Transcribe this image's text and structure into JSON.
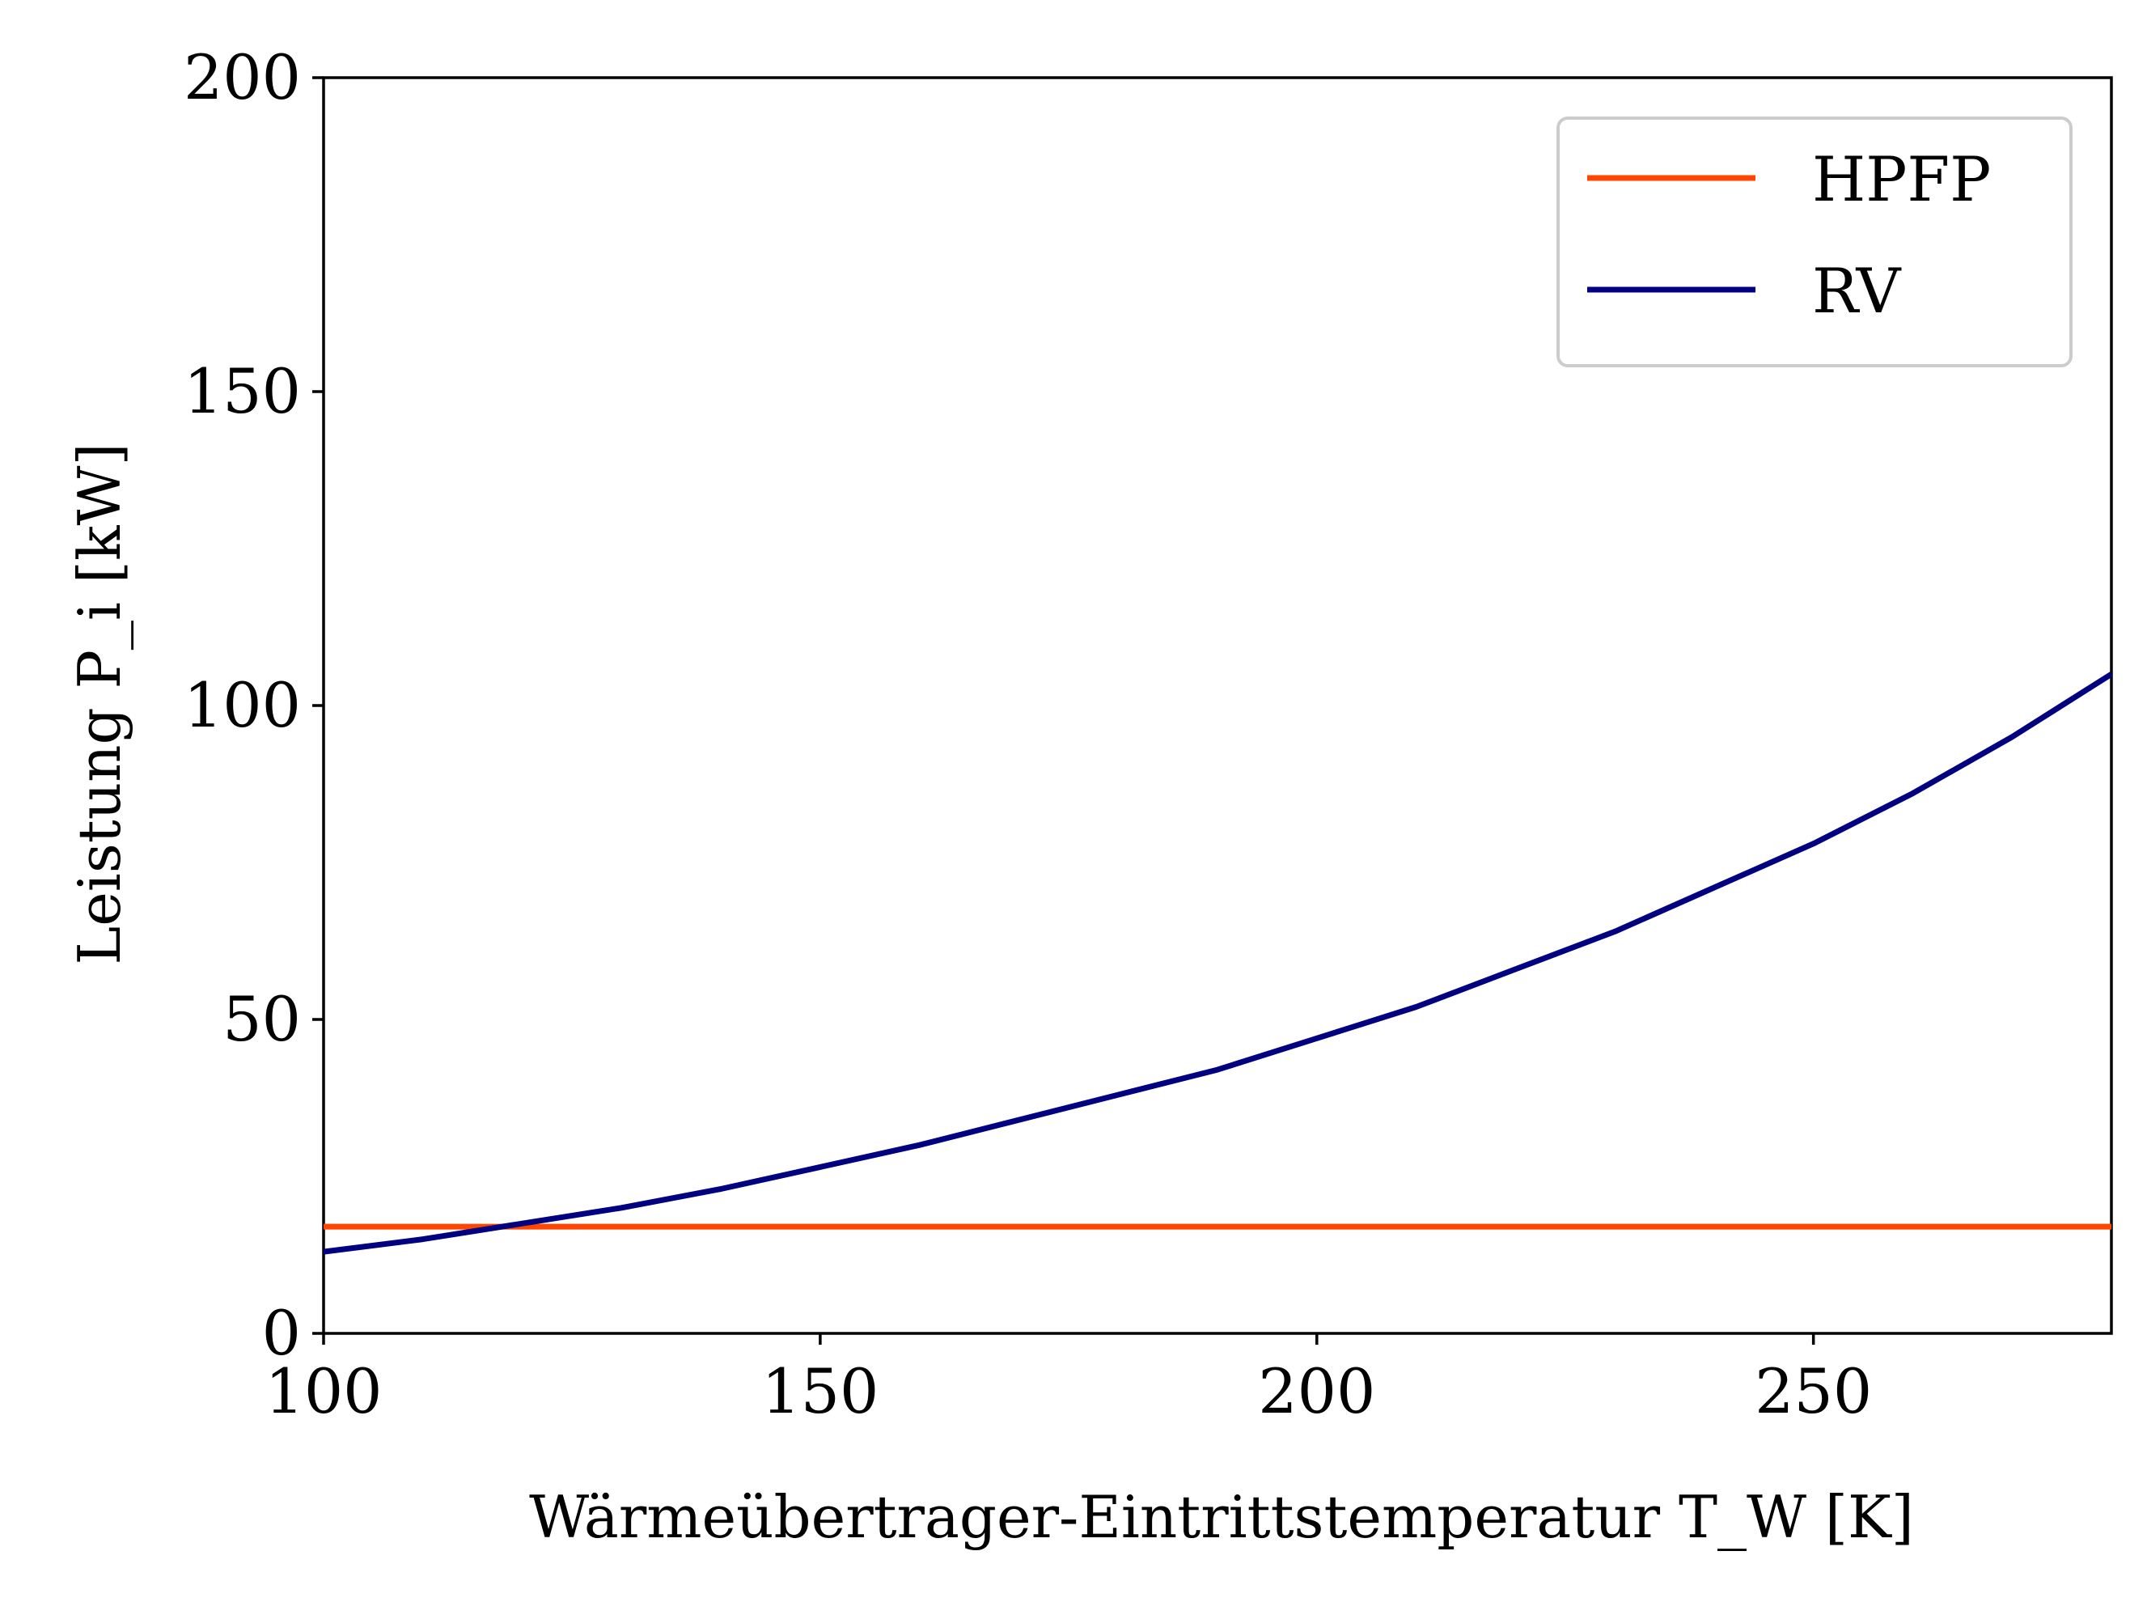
{
  "chart_data": {
    "type": "line",
    "xlabel": "Wärmeübertrager-Eintrittstemperatur T_W [K]",
    "ylabel": "Leistung P_i [kW]",
    "xlim": [
      100,
      280
    ],
    "ylim": [
      0,
      200
    ],
    "xticks": [
      100,
      150,
      200,
      250
    ],
    "yticks": [
      0,
      50,
      100,
      150,
      200
    ],
    "grid": false,
    "legend_position": "top-right",
    "series": [
      {
        "name": "HPFP",
        "color": "#ff4500",
        "x": [
          100,
          280
        ],
        "y": [
          17,
          17
        ]
      },
      {
        "name": "RV",
        "color": "#000080",
        "x": [
          100,
          110,
          120,
          130,
          140,
          150,
          160,
          170,
          180,
          190,
          200,
          210,
          220,
          230,
          240,
          250,
          260,
          270,
          280
        ],
        "y": [
          13,
          15,
          17.5,
          20,
          23,
          26.5,
          30,
          34,
          38,
          42,
          47,
          52,
          58,
          64,
          71,
          78,
          86,
          95,
          105
        ]
      }
    ]
  }
}
